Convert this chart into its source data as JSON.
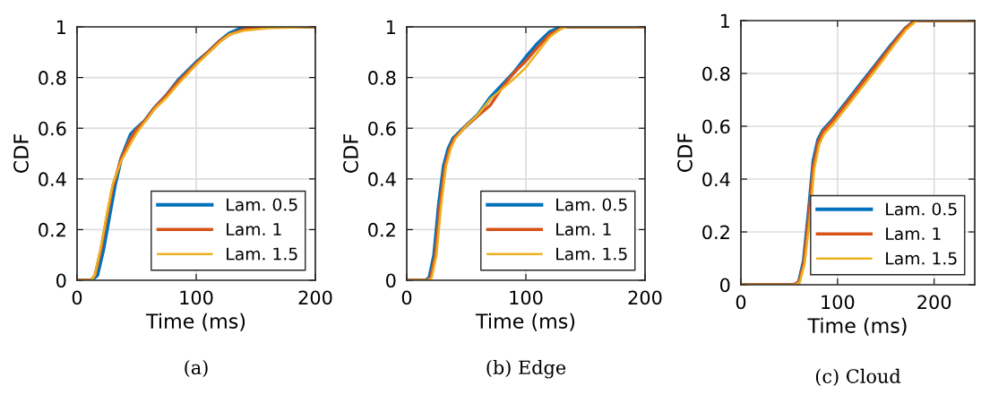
{
  "chart_data": [
    {
      "type": "line",
      "title": "(a)",
      "xlabel": "Time (ms)",
      "ylabel": "CDF",
      "xlim": [
        0,
        200
      ],
      "ylim": [
        0,
        1
      ],
      "xticks": [
        0,
        100,
        200
      ],
      "yticks": [
        0,
        0.2,
        0.4,
        0.6,
        0.8,
        1
      ],
      "grid": true,
      "legend": "bottom right",
      "series": [
        {
          "name": "Lam. 0.5",
          "color": "#0072bd",
          "x": [
            0,
            12,
            17,
            22,
            27,
            32,
            37,
            45,
            50,
            57,
            65,
            75,
            85,
            100,
            110,
            120,
            128,
            138,
            150,
            200
          ],
          "values": [
            0,
            0,
            0.02,
            0.12,
            0.25,
            0.38,
            0.48,
            0.575,
            0.6,
            0.63,
            0.68,
            0.73,
            0.79,
            0.86,
            0.9,
            0.945,
            0.975,
            0.995,
            1,
            1
          ]
        },
        {
          "name": "Lam. 1",
          "color": "#d95319",
          "x": [
            0,
            12,
            15,
            20,
            25,
            30,
            37,
            45,
            50,
            57,
            65,
            75,
            85,
            100,
            110,
            120,
            128,
            140,
            155,
            200
          ],
          "values": [
            0,
            0,
            0.02,
            0.12,
            0.25,
            0.37,
            0.48,
            0.56,
            0.595,
            0.63,
            0.68,
            0.73,
            0.785,
            0.855,
            0.9,
            0.945,
            0.97,
            0.99,
            1,
            1
          ]
        },
        {
          "name": "Lam. 1.5",
          "color": "#edb120",
          "x": [
            0,
            12,
            15,
            20,
            25,
            30,
            37,
            45,
            50,
            57,
            65,
            75,
            85,
            100,
            110,
            120,
            128,
            140,
            160,
            200
          ],
          "values": [
            0,
            0,
            0.02,
            0.13,
            0.26,
            0.38,
            0.47,
            0.54,
            0.58,
            0.625,
            0.675,
            0.72,
            0.775,
            0.85,
            0.895,
            0.94,
            0.97,
            0.985,
            0.995,
            1
          ]
        }
      ]
    },
    {
      "type": "line",
      "title": "(b) Edge",
      "xlabel": "Time (ms)",
      "ylabel": "CDF",
      "xlim": [
        0,
        200
      ],
      "ylim": [
        0,
        1
      ],
      "xticks": [
        0,
        100,
        200
      ],
      "yticks": [
        0,
        0.2,
        0.4,
        0.6,
        0.8,
        1
      ],
      "grid": true,
      "legend": "bottom right",
      "series": [
        {
          "name": "Lam. 0.5",
          "color": "#0072bd",
          "x": [
            0,
            16,
            19,
            23,
            27,
            31,
            35,
            39,
            50,
            60,
            70,
            80,
            90,
            100,
            110,
            120,
            130,
            200
          ],
          "values": [
            0,
            0,
            0.01,
            0.1,
            0.3,
            0.45,
            0.52,
            0.56,
            0.61,
            0.655,
            0.72,
            0.77,
            0.82,
            0.88,
            0.935,
            0.98,
            1,
            1
          ]
        },
        {
          "name": "Lam. 1",
          "color": "#d95319",
          "x": [
            0,
            17,
            20,
            24,
            28,
            32,
            36,
            40,
            50,
            60,
            70,
            80,
            90,
            100,
            110,
            120,
            132,
            200
          ],
          "values": [
            0,
            0,
            0.01,
            0.1,
            0.3,
            0.45,
            0.52,
            0.56,
            0.61,
            0.65,
            0.69,
            0.76,
            0.82,
            0.865,
            0.92,
            0.97,
            1,
            1
          ]
        },
        {
          "name": "Lam. 1.5",
          "color": "#edb120",
          "x": [
            0,
            18,
            21,
            25,
            29,
            33,
            37,
            41,
            50,
            60,
            70,
            80,
            90,
            100,
            110,
            120,
            130,
            135,
            200
          ],
          "values": [
            0,
            0,
            0.01,
            0.1,
            0.3,
            0.45,
            0.52,
            0.56,
            0.61,
            0.655,
            0.715,
            0.755,
            0.795,
            0.84,
            0.9,
            0.96,
            0.995,
            1,
            1
          ]
        }
      ]
    },
    {
      "type": "line",
      "title": "(c) Cloud",
      "xlabel": "Time (ms)",
      "ylabel": "CDF",
      "xlim": [
        0,
        242
      ],
      "ylim": [
        0,
        1
      ],
      "xticks": [
        0,
        100,
        200
      ],
      "yticks": [
        0,
        0.2,
        0.4,
        0.6,
        0.8,
        1
      ],
      "grid": true,
      "legend": "bottom right",
      "series": [
        {
          "name": "Lam. 0.5",
          "color": "#0072bd",
          "x": [
            0,
            55,
            60,
            65,
            70,
            75,
            80,
            85,
            95,
            110,
            125,
            140,
            155,
            170,
            180,
            242
          ],
          "values": [
            0,
            0,
            0.01,
            0.09,
            0.27,
            0.47,
            0.55,
            0.585,
            0.625,
            0.695,
            0.765,
            0.835,
            0.905,
            0.97,
            1,
            1
          ]
        },
        {
          "name": "Lam. 1",
          "color": "#d95319",
          "x": [
            0,
            55,
            60,
            65,
            70,
            75,
            80,
            85,
            95,
            110,
            125,
            140,
            155,
            170,
            180,
            242
          ],
          "values": [
            0,
            0,
            0.01,
            0.08,
            0.25,
            0.45,
            0.54,
            0.58,
            0.62,
            0.69,
            0.76,
            0.83,
            0.9,
            0.97,
            1,
            1
          ]
        },
        {
          "name": "Lam. 1.5",
          "color": "#edb120",
          "x": [
            0,
            56,
            61,
            66,
            71,
            76,
            81,
            86,
            96,
            111,
            126,
            141,
            156,
            171,
            182,
            242
          ],
          "values": [
            0,
            0,
            0.01,
            0.08,
            0.24,
            0.44,
            0.53,
            0.57,
            0.61,
            0.68,
            0.75,
            0.82,
            0.895,
            0.965,
            1,
            1
          ]
        }
      ]
    }
  ]
}
